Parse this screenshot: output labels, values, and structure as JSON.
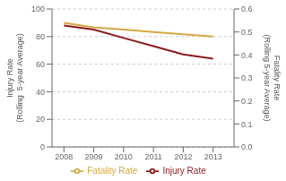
{
  "chart_data": {
    "type": "line",
    "x": [
      2008,
      2009,
      2010,
      2011,
      2012,
      2013
    ],
    "xlim": [
      2007.6,
      2013.7
    ],
    "xticks": [
      2008,
      2009,
      2010,
      2011,
      2012,
      2013
    ],
    "ylim": [
      0,
      100
    ],
    "yticks": [
      0,
      20,
      40,
      60,
      80,
      100
    ],
    "y2lim": [
      0.0,
      0.6
    ],
    "y2ticks": [
      {
        "value": 0.0,
        "label": "0.0"
      },
      0.1,
      0.2,
      0.3,
      0.4,
      0.5,
      0.6
    ],
    "ylabel": "Injury Rate\n(Rolling  5-year Average)",
    "y2label": "Fatality Rate\n(Rolling 5-year Average)",
    "grid": true,
    "legend": "bottom",
    "series": [
      {
        "name": "Injury Rate",
        "color": "#8B1A1A",
        "values": [
          88,
          85,
          79,
          73,
          67,
          64
        ]
      },
      {
        "name": "Fatality Rate",
        "color": "#D4A843",
        "values": [
          0.54,
          0.52,
          0.51,
          0.5,
          0.49,
          0.48
        ],
        "axis": "y2"
      }
    ]
  }
}
